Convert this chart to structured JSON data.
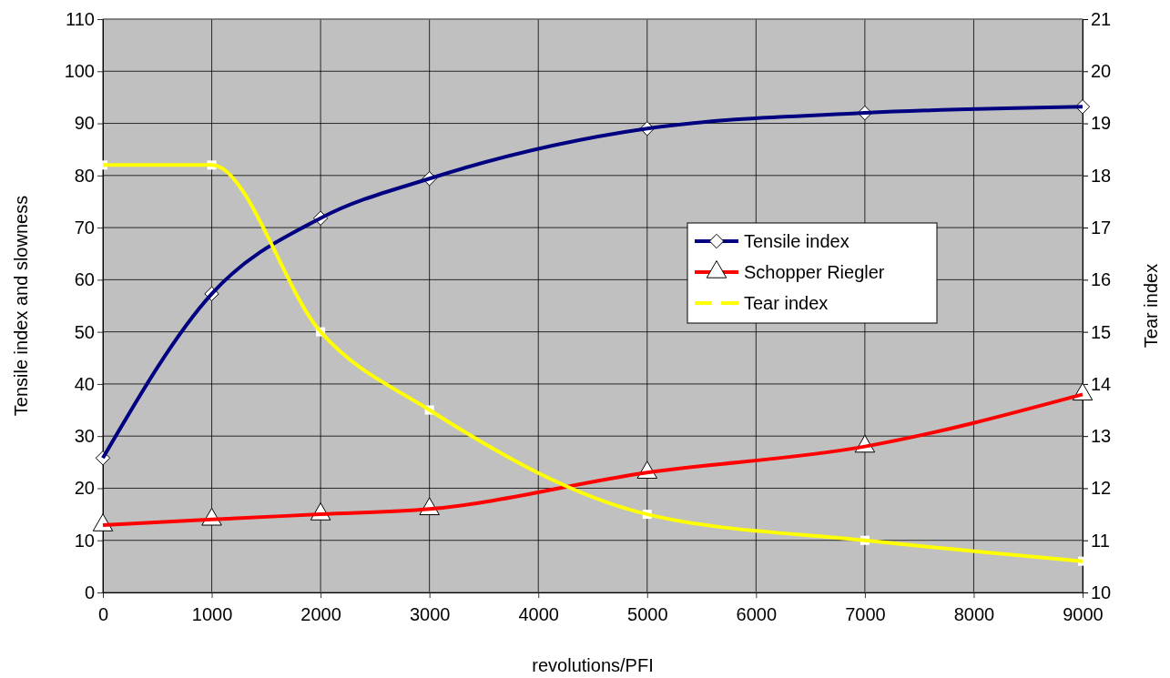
{
  "chart_data": {
    "type": "line",
    "xlabel": "revolutions/PFI",
    "ylabel": "Tensile index and slowness",
    "y2label": "Tear index",
    "x": [
      0,
      1000,
      2000,
      3000,
      5000,
      7000,
      9000
    ],
    "xlim": [
      0,
      9000
    ],
    "xticks": [
      0,
      1000,
      2000,
      3000,
      4000,
      5000,
      6000,
      7000,
      8000,
      9000
    ],
    "ylim": [
      0,
      110
    ],
    "yticks": [
      0,
      10,
      20,
      30,
      40,
      50,
      60,
      70,
      80,
      90,
      100,
      110
    ],
    "y2lim": [
      10,
      21
    ],
    "y2ticks": [
      10,
      11,
      12,
      13,
      14,
      15,
      16,
      17,
      18,
      19,
      20,
      21
    ],
    "grid": true,
    "legend": "right",
    "line_style": "solid",
    "series": [
      {
        "name": "Tensile index",
        "color": "#000080",
        "marker": "diamond",
        "values": [
          25.8,
          57.3,
          71.8,
          79.4,
          89,
          92,
          93.2
        ]
      },
      {
        "name": "Schopper Riegler",
        "color": "#ff0000",
        "marker": "triangle",
        "values": [
          12.9,
          14,
          15,
          16,
          23,
          28,
          38
        ]
      },
      {
        "name": "Tear index",
        "color": "#ffff00",
        "marker": "square",
        "axis": "y2",
        "values": [
          18.2,
          18.2,
          15,
          13.5,
          11.5,
          11,
          10.6
        ]
      }
    ]
  }
}
